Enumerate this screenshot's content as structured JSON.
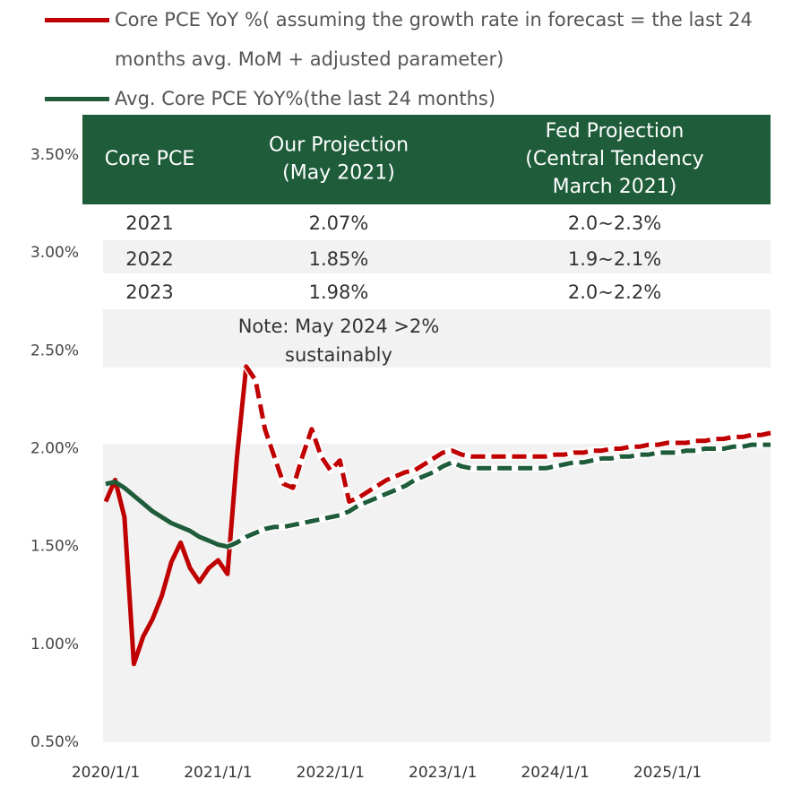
{
  "chart_data": {
    "type": "line",
    "x": [
      "2020/1/1",
      "2020/2/1",
      "2020/3/1",
      "2020/4/1",
      "2020/5/1",
      "2020/6/1",
      "2020/7/1",
      "2020/8/1",
      "2020/9/1",
      "2020/10/1",
      "2020/11/1",
      "2020/12/1",
      "2021/1/1",
      "2021/2/1",
      "2021/3/1",
      "2021/4/1",
      "2021/5/1",
      "2021/6/1",
      "2021/7/1",
      "2021/8/1",
      "2021/9/1",
      "2021/10/1",
      "2021/11/1",
      "2021/12/1",
      "2022/1/1",
      "2022/2/1",
      "2022/3/1",
      "2022/4/1",
      "2022/5/1",
      "2022/6/1",
      "2022/7/1",
      "2022/8/1",
      "2022/9/1",
      "2022/10/1",
      "2022/11/1",
      "2022/12/1",
      "2023/1/1",
      "2023/2/1",
      "2023/3/1",
      "2023/4/1",
      "2023/5/1",
      "2023/6/1",
      "2023/7/1",
      "2023/8/1",
      "2023/9/1",
      "2023/10/1",
      "2023/11/1",
      "2023/12/1",
      "2024/1/1",
      "2024/2/1",
      "2024/3/1",
      "2024/4/1",
      "2024/5/1",
      "2024/6/1",
      "2024/7/1",
      "2024/8/1",
      "2024/9/1",
      "2024/10/1",
      "2024/11/1",
      "2024/12/1",
      "2025/1/1",
      "2025/2/1",
      "2025/3/1",
      "2025/4/1",
      "2025/5/1",
      "2025/6/1",
      "2025/7/1",
      "2025/8/1",
      "2025/9/1",
      "2025/10/1",
      "2025/11/1",
      "2025/12/1"
    ],
    "series": [
      {
        "name": "Core PCE YoY %( assuming the growth rate in forecast = the last 24 months avg. MoM + adjusted parameter)",
        "color": "#c00000",
        "values": [
          1.73,
          1.84,
          1.65,
          0.9,
          1.04,
          1.13,
          1.25,
          1.42,
          1.52,
          1.39,
          1.32,
          1.39,
          1.43,
          1.36,
          1.95,
          2.42,
          2.35,
          2.1,
          1.96,
          1.82,
          1.8,
          1.96,
          2.1,
          1.96,
          1.89,
          1.94,
          1.73,
          1.75,
          1.78,
          1.81,
          1.84,
          1.86,
          1.88,
          1.89,
          1.92,
          1.95,
          1.98,
          1.99,
          1.97,
          1.96,
          1.96,
          1.96,
          1.96,
          1.96,
          1.96,
          1.96,
          1.96,
          1.96,
          1.97,
          1.97,
          1.98,
          1.98,
          1.99,
          1.99,
          2.0,
          2.0,
          2.01,
          2.01,
          2.02,
          2.02,
          2.03,
          2.03,
          2.03,
          2.04,
          2.04,
          2.05,
          2.05,
          2.06,
          2.06,
          2.07,
          2.07,
          2.08
        ]
      },
      {
        "name": "Avg. Core PCE YoY%(the last 24 months)",
        "color": "#1e5c3a",
        "values": [
          1.82,
          1.83,
          1.8,
          1.76,
          1.72,
          1.68,
          1.65,
          1.62,
          1.6,
          1.58,
          1.55,
          1.53,
          1.51,
          1.5,
          1.52,
          1.55,
          1.57,
          1.59,
          1.6,
          1.6,
          1.61,
          1.62,
          1.63,
          1.64,
          1.65,
          1.66,
          1.68,
          1.71,
          1.73,
          1.75,
          1.77,
          1.79,
          1.81,
          1.84,
          1.86,
          1.88,
          1.91,
          1.93,
          1.91,
          1.9,
          1.9,
          1.9,
          1.9,
          1.9,
          1.9,
          1.9,
          1.9,
          1.9,
          1.91,
          1.92,
          1.93,
          1.93,
          1.94,
          1.95,
          1.95,
          1.96,
          1.96,
          1.97,
          1.97,
          1.98,
          1.98,
          1.98,
          1.99,
          1.99,
          2.0,
          2.0,
          2.0,
          2.01,
          2.01,
          2.02,
          2.02,
          2.02
        ]
      }
    ],
    "xlim": [
      "2020/1/1",
      "2025/12/1"
    ],
    "xticks": [
      "2020/1/1",
      "2021/1/1",
      "2022/1/1",
      "2023/1/1",
      "2024/1/1",
      "2025/1/1"
    ],
    "ylim": [
      0.5,
      3.5
    ],
    "yticks": [
      {
        "value": 0.5,
        "label": "0.50%"
      },
      {
        "value": 1.0,
        "label": "1.00%"
      },
      {
        "value": 1.5,
        "label": "1.50%"
      },
      {
        "value": 2.0,
        "label": "2.00%"
      },
      {
        "value": 2.5,
        "label": "2.50%"
      },
      {
        "value": 3.0,
        "label": "3.00%"
      },
      {
        "value": 3.5,
        "label": "3.50%"
      }
    ],
    "grid": false
  },
  "table": {
    "header": [
      [
        "Core PCE"
      ],
      [
        "Our Projection",
        "(May 2021)"
      ],
      [
        "Fed Projection",
        "(Central Tendency",
        "March 2021)"
      ]
    ],
    "rows": [
      [
        "2021",
        "2.07%",
        "2.0~2.3%"
      ],
      [
        "2022",
        "1.85%",
        "1.9~2.1%"
      ],
      [
        "2023",
        "1.98%",
        "2.0~2.2%"
      ]
    ],
    "note": [
      "Note: May 2024 >2%",
      "sustainably"
    ]
  }
}
